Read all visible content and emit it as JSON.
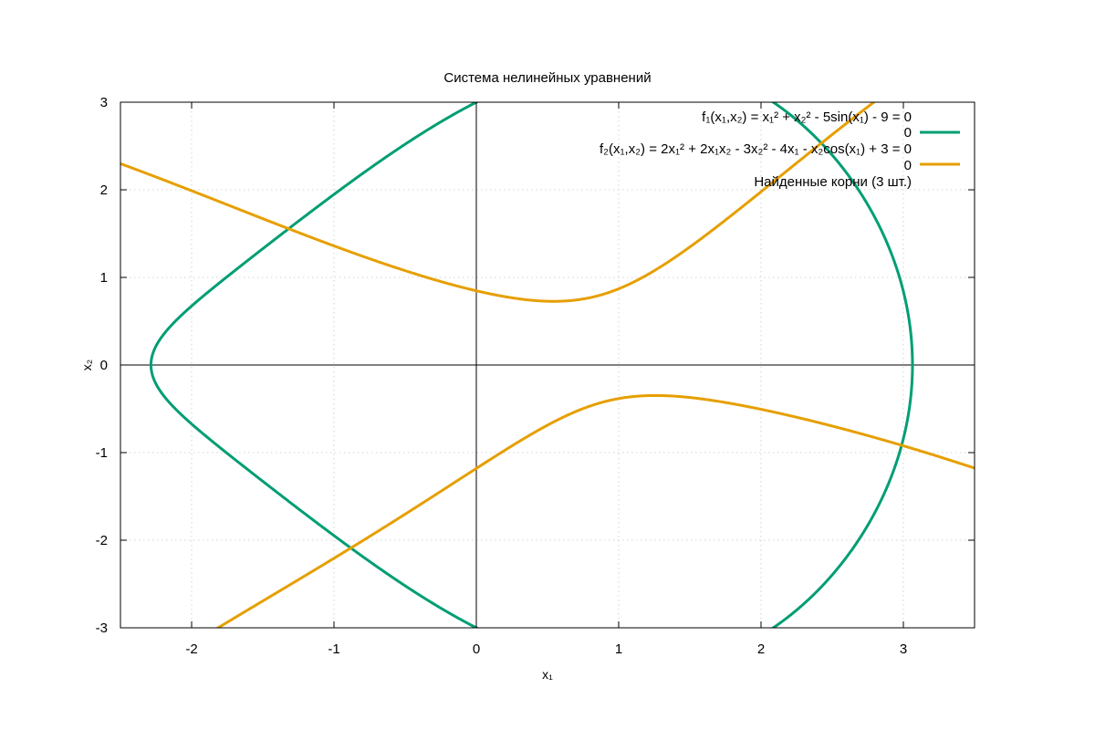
{
  "chart_data": {
    "type": "line",
    "title": "Система нелинейных уравнений",
    "xlabel": "x₁",
    "ylabel": "x₂",
    "xlim": [
      -2.5,
      3.5
    ],
    "ylim": [
      -3,
      3
    ],
    "grid": true,
    "xticks": [
      -2,
      -1,
      0,
      1,
      2,
      3
    ],
    "yticks": [
      -3,
      -2,
      -1,
      0,
      1,
      2,
      3
    ],
    "xtick_labels": [
      "-2",
      "-1",
      "0",
      "1",
      "2",
      "3"
    ],
    "ytick_labels": [
      "-3",
      "-2",
      "-1",
      "0",
      "1",
      "2",
      "3"
    ],
    "legend_position": "top-right",
    "legend": [
      {
        "label": "f₁(x₁,x₂) = x₁² + x₂² - 5sin(x₁) - 9 = 0",
        "sample_label": "0",
        "color": "#009e73"
      },
      {
        "label": "f₂(x₁,x₂) = 2x₁² + 2x₁x₂ - 3x₂² - 4x₁ - x₂cos(x₁) + 3 = 0",
        "sample_label": "0",
        "color": "#e69f00"
      },
      {
        "label": "Найденные корни (3 шт.)"
      }
    ],
    "series": [
      {
        "name": "f₁(x₁,x₂) = 0",
        "color": "#009e73",
        "equation": "x1^2 + x2^2 - 5*sin(x1) - 9 = 0"
      },
      {
        "name": "f₂(x₁,x₂) = 0",
        "color": "#e69f00",
        "equation": "2*x1^2 + 2*x1*x2 - 3*x2^2 - 4*x1 - x2*cos(x1) + 3 = 0"
      }
    ],
    "roots_count": 3
  }
}
